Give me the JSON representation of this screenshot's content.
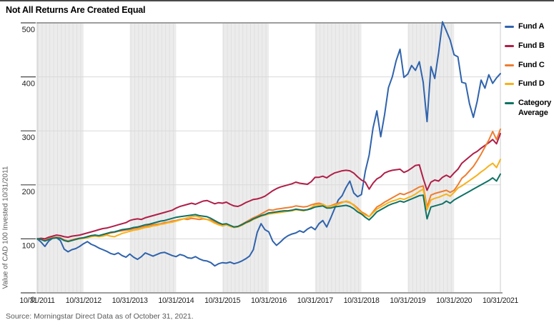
{
  "title": "Not All Returns Are Created Equal",
  "source": "Source: Morningstar Direct Data as of October 31, 2021.",
  "chart_data": {
    "type": "line",
    "title": "Not All Returns Are Created Equal",
    "xlabel": "",
    "ylabel": "Value of CAD 100 Invested 10/31/2011",
    "ylim": [
      0,
      500
    ],
    "yticks": [
      0,
      100,
      200,
      300,
      400,
      500
    ],
    "xtick_labels": [
      "10/31/2011",
      "10/31/2012",
      "10/31/2013",
      "10/31/2014",
      "10/31/2015",
      "10/31/2016",
      "10/31/2017",
      "10/31/2018",
      "10/31/2019",
      "10/31/2020",
      "10/31/2021"
    ],
    "x_unit": "months since 10/31/2011 (0-120)",
    "grid": "horizontal",
    "legend_position": "right",
    "shaded_month_bands": [
      [
        0,
        12
      ],
      [
        24,
        36
      ],
      [
        48,
        60
      ],
      [
        72,
        84
      ],
      [
        96,
        108
      ]
    ],
    "colors": {
      "band": "#ececec",
      "band_stripe": "#e0e0e0",
      "gridline": "#d9d9d9",
      "plot_border": "#cbcbcb",
      "axis_line": "#9e9e9e",
      "tick_text": "#1f1f1f",
      "muted_text": "#58595b"
    },
    "series": [
      {
        "name": "Fund A",
        "color": "#2f63ad",
        "values": [
          100,
          94,
          86,
          96,
          101,
          102,
          97,
          81,
          76,
          80,
          82,
          86,
          91,
          95,
          90,
          87,
          83,
          80,
          77,
          73,
          71,
          74,
          69,
          66,
          72,
          66,
          62,
          67,
          74,
          71,
          68,
          71,
          74,
          75,
          72,
          69,
          67,
          71,
          69,
          65,
          64,
          67,
          63,
          60,
          59,
          56,
          50,
          54,
          56,
          55,
          57,
          54,
          56,
          59,
          63,
          68,
          80,
          112,
          128,
          117,
          113,
          96,
          88,
          94,
          101,
          106,
          109,
          111,
          115,
          112,
          118,
          122,
          117,
          128,
          134,
          122,
          138,
          155,
          172,
          180,
          195,
          207,
          185,
          178,
          182,
          225,
          255,
          305,
          337,
          289,
          330,
          380,
          400,
          430,
          451,
          399,
          405,
          421,
          412,
          428,
          390,
          317,
          419,
          397,
          445,
          502,
          485,
          468,
          441,
          437,
          390,
          388,
          350,
          325,
          355,
          394,
          379,
          404,
          388,
          398,
          406
        ]
      },
      {
        "name": "Fund B",
        "color": "#b01e48",
        "values": [
          100,
          101,
          100,
          103,
          105,
          107,
          106,
          104,
          103,
          105,
          106,
          107,
          109,
          111,
          113,
          115,
          117,
          119,
          120,
          122,
          124,
          126,
          128,
          130,
          134,
          136,
          137,
          136,
          139,
          141,
          143,
          145,
          147,
          149,
          151,
          153,
          157,
          160,
          162,
          164,
          166,
          164,
          167,
          170,
          171,
          168,
          165,
          167,
          166,
          168,
          164,
          161,
          160,
          163,
          167,
          170,
          173,
          174,
          176,
          179,
          184,
          189,
          193,
          196,
          198,
          200,
          202,
          205,
          203,
          202,
          201,
          206,
          214,
          214,
          216,
          213,
          218,
          222,
          224,
          226,
          227,
          226,
          222,
          215,
          209,
          205,
          192,
          203,
          211,
          215,
          222,
          225,
          227,
          228,
          229,
          223,
          226,
          231,
          236,
          237,
          212,
          190,
          205,
          209,
          207,
          214,
          218,
          214,
          222,
          229,
          240,
          246,
          252,
          258,
          262,
          268,
          273,
          278,
          284,
          276,
          295
        ]
      },
      {
        "name": "Fund C",
        "color": "#ee7d30",
        "values": [
          100,
          99,
          97,
          100,
          102,
          103,
          102,
          98,
          96,
          98,
          100,
          101,
          102,
          104,
          106,
          107,
          105,
          107,
          109,
          111,
          112,
          114,
          115,
          116,
          117,
          119,
          120,
          122,
          123,
          125,
          126,
          127,
          128,
          130,
          131,
          133,
          134,
          136,
          137,
          136,
          138,
          137,
          136,
          137,
          136,
          135,
          131,
          128,
          124,
          126,
          124,
          122,
          123,
          127,
          131,
          135,
          139,
          142,
          146,
          150,
          154,
          153,
          155,
          156,
          157,
          158,
          159,
          161,
          160,
          159,
          160,
          163,
          165,
          166,
          164,
          160,
          161,
          164,
          166,
          168,
          169,
          167,
          163,
          157,
          150,
          146,
          141,
          150,
          159,
          163,
          168,
          172,
          176,
          180,
          184,
          182,
          185,
          188,
          192,
          196,
          198,
          159,
          181,
          184,
          186,
          188,
          190,
          186,
          190,
          200,
          212,
          218,
          226,
          234,
          245,
          257,
          270,
          283,
          299,
          284,
          303
        ]
      },
      {
        "name": "Fund D",
        "color": "#f6b21c",
        "values": [
          100,
          99,
          96,
          99,
          101,
          102,
          101,
          97,
          95,
          97,
          99,
          100,
          101,
          102,
          104,
          105,
          104,
          105,
          107,
          105,
          104,
          107,
          110,
          112,
          114,
          116,
          117,
          119,
          121,
          122,
          124,
          125,
          127,
          128,
          130,
          131,
          133,
          135,
          137,
          139,
          141,
          142,
          140,
          138,
          136,
          133,
          129,
          126,
          124,
          126,
          123,
          121,
          122,
          125,
          129,
          132,
          136,
          139,
          142,
          144,
          146,
          147,
          148,
          149,
          150,
          151,
          152,
          154,
          153,
          152,
          154,
          158,
          163,
          163,
          164,
          160,
          160,
          162,
          164,
          167,
          170,
          168,
          162,
          155,
          148,
          144,
          141,
          148,
          155,
          159,
          163,
          167,
          170,
          172,
          175,
          173,
          176,
          179,
          183,
          188,
          192,
          154,
          172,
          175,
          177,
          180,
          183,
          179,
          186,
          194,
          198,
          203,
          208,
          213,
          218,
          224,
          229,
          235,
          240,
          232,
          247
        ]
      },
      {
        "name": "Category Average",
        "color": "#0f7265",
        "values": [
          100,
          99,
          96,
          99,
          101,
          102,
          101,
          97,
          95,
          97,
          99,
          101,
          102,
          104,
          106,
          107,
          106,
          108,
          110,
          112,
          113,
          115,
          117,
          118,
          119,
          121,
          122,
          124,
          126,
          127,
          129,
          131,
          133,
          134,
          136,
          138,
          140,
          141,
          142,
          143,
          144,
          145,
          143,
          142,
          141,
          138,
          134,
          130,
          127,
          128,
          125,
          122,
          123,
          126,
          130,
          133,
          137,
          140,
          143,
          145,
          148,
          149,
          150,
          151,
          152,
          152,
          153,
          155,
          154,
          153,
          154,
          156,
          159,
          160,
          161,
          157,
          157,
          159,
          160,
          161,
          162,
          160,
          156,
          150,
          146,
          140,
          135,
          142,
          150,
          154,
          158,
          162,
          165,
          167,
          170,
          168,
          171,
          174,
          177,
          180,
          181,
          137,
          159,
          161,
          163,
          165,
          170,
          166,
          172,
          176,
          180,
          184,
          188,
          192,
          196,
          200,
          204,
          208,
          213,
          207,
          220
        ]
      }
    ]
  }
}
